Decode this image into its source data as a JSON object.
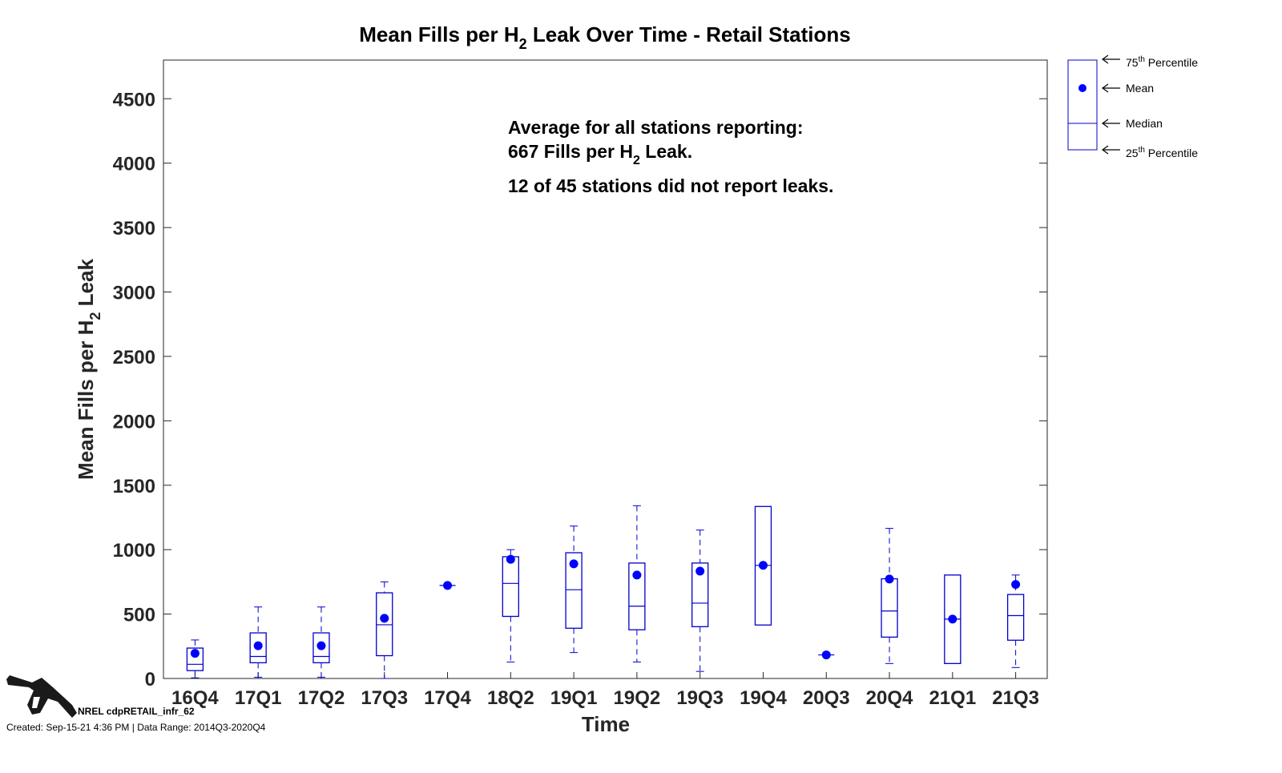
{
  "chart_data": {
    "type": "box",
    "title": "Mean Fills per H",
    "title_sub": "2",
    "title_rest": " Leak Over Time - Retail Stations",
    "xlabel": "Time",
    "ylabel": "Mean Fills per H",
    "ylabel_sub": "2",
    "ylabel_rest": " Leak",
    "ylim": [
      0,
      4800
    ],
    "yticks": [
      0,
      500,
      1000,
      1500,
      2000,
      2500,
      3000,
      3500,
      4000,
      4500
    ],
    "categories": [
      "16Q4",
      "17Q1",
      "17Q2",
      "17Q3",
      "17Q4",
      "18Q2",
      "19Q1",
      "19Q2",
      "19Q3",
      "19Q4",
      "20Q3",
      "20Q4",
      "21Q1",
      "21Q3"
    ],
    "boxes": [
      {
        "min": 5,
        "q1": 61,
        "median": 110,
        "q3": 236,
        "max": 299,
        "mean": 195
      },
      {
        "min": 10,
        "q1": 122,
        "median": 171,
        "q3": 354,
        "max": 555,
        "mean": 254
      },
      {
        "min": 10,
        "q1": 122,
        "median": 171,
        "q3": 354,
        "max": 555,
        "mean": 254
      },
      {
        "min": 0,
        "q1": 177,
        "median": 417,
        "q3": 665,
        "max": 750,
        "mean": 467
      },
      {
        "min": 722,
        "q1": 722,
        "median": 722,
        "q3": 722,
        "max": 722,
        "mean": 722
      },
      {
        "min": 128,
        "q1": 482,
        "median": 738,
        "q3": 945,
        "max": 1000,
        "mean": 925
      },
      {
        "min": 201,
        "q1": 390,
        "median": 689,
        "q3": 976,
        "max": 1183,
        "mean": 890
      },
      {
        "min": 128,
        "q1": 378,
        "median": 561,
        "q3": 896,
        "max": 1341,
        "mean": 803
      },
      {
        "min": 55,
        "q1": 402,
        "median": 585,
        "q3": 896,
        "max": 1152,
        "mean": 833
      },
      {
        "min": 415,
        "q1": 415,
        "median": 878,
        "q3": 1335,
        "max": 1335,
        "mean": 878
      },
      {
        "min": 183,
        "q1": 183,
        "median": 183,
        "q3": 183,
        "max": 183,
        "mean": 183
      },
      {
        "min": 116,
        "q1": 321,
        "median": 524,
        "q3": 774,
        "max": 1165,
        "mean": 772
      },
      {
        "min": 116,
        "q1": 116,
        "median": 461,
        "q3": 803,
        "max": 803,
        "mean": 461
      },
      {
        "min": 85,
        "q1": 297,
        "median": 488,
        "q3": 652,
        "max": 803,
        "mean": 730
      }
    ],
    "annotation": {
      "line1": "Average for all stations reporting:",
      "line2a": "667 Fills per H",
      "line2sub": "2",
      "line2b": " Leak.",
      "line3": "12 of 45 stations did not report leaks."
    },
    "legend": {
      "position": "right",
      "p75": "75",
      "p75_sup": "th",
      "p75_rest": " Percentile",
      "mean": "Mean",
      "median": "Median",
      "p25": "25",
      "p25_sup": "th",
      "p25_rest": " Percentile"
    },
    "colors": {
      "box": "#0000cc",
      "mean": "#0000ff",
      "axis": "#262626"
    }
  },
  "footer": {
    "id": "NREL cdpRETAIL_infr_62",
    "created": "Created: Sep-15-21  4:36 PM | Data Range: 2014Q3-2020Q4"
  }
}
